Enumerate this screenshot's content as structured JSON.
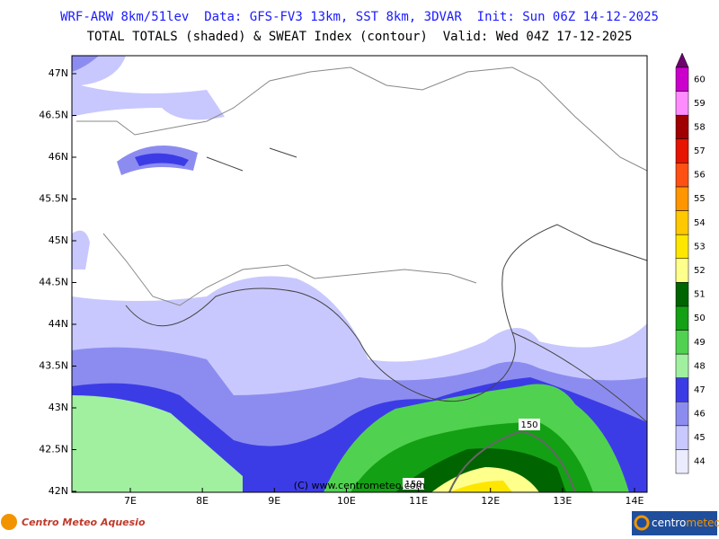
{
  "header": {
    "line1": "WRF-ARW 8km/51lev  Data: GFS-FV3 13km, SST 8km, 3DVAR  Init: Sun 06Z 14-12-2025",
    "line2": "TOTAL TOTALS (shaded) & SWEAT Index (contour)  Valid: Wed 04Z 17-12-2025"
  },
  "map": {
    "lat_labels": [
      "47N",
      "46.5N",
      "46N",
      "45.5N",
      "45N",
      "44.5N",
      "44N",
      "43.5N",
      "43N",
      "42.5N",
      "42N"
    ],
    "lon_labels": [
      "7E",
      "8E",
      "9E",
      "10E",
      "11E",
      "12E",
      "13E",
      "14E"
    ],
    "contour_labels": [
      "150",
      "150"
    ],
    "copyright": "(C) www.centrometeo.com"
  },
  "colorbar": {
    "labels": [
      "44",
      "45",
      "46",
      "47",
      "48",
      "49",
      "50",
      "51",
      "52",
      "53",
      "54",
      "55",
      "56",
      "57",
      "58",
      "59",
      "60"
    ],
    "colors": [
      "#ececff",
      "#c8c8ff",
      "#8c8cf0",
      "#3c3ce6",
      "#a0f0a0",
      "#50d250",
      "#14a014",
      "#006400",
      "#ffff8c",
      "#ffe600",
      "#ffc800",
      "#ff9600",
      "#ff5014",
      "#e61400",
      "#a00000",
      "#ff8cff",
      "#cc00cc"
    ],
    "over_color": "#6e006e"
  },
  "footer": {
    "left_logo": "Centro Meteo Aquesio",
    "right_logo_a": "centro",
    "right_logo_b": "meteo"
  }
}
